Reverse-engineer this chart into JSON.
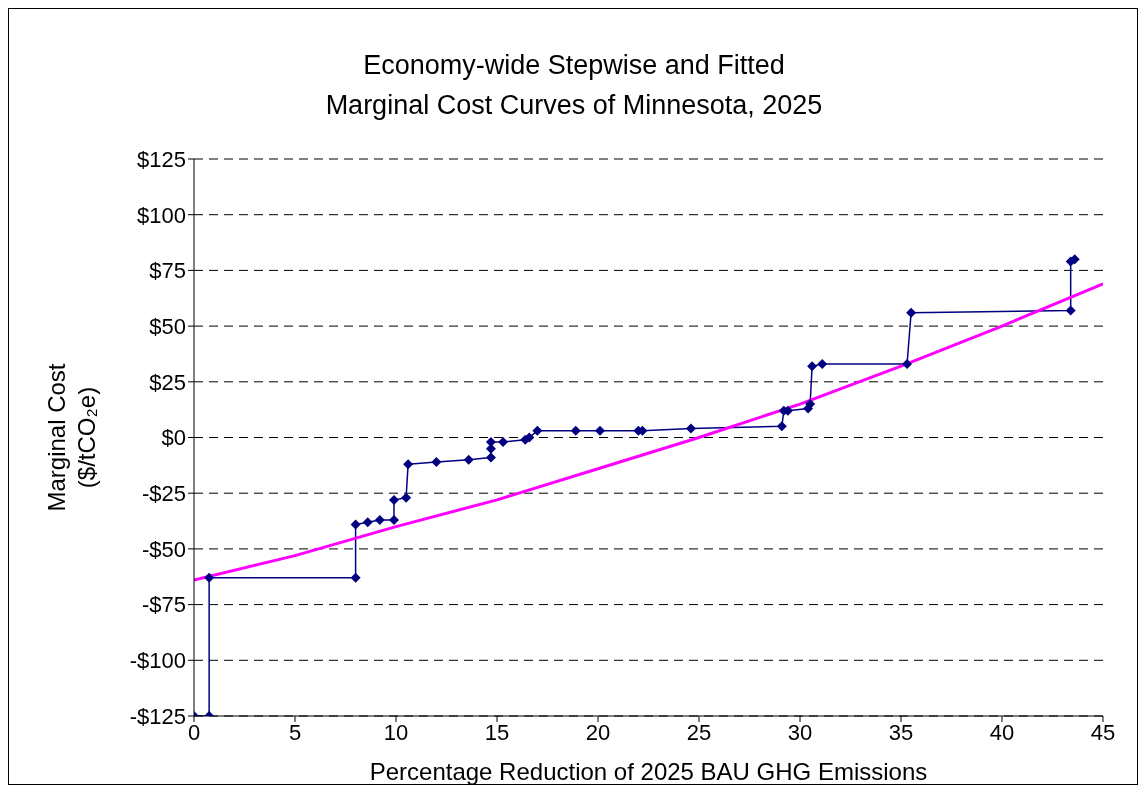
{
  "chart_data": {
    "type": "line",
    "title": "Economy-wide Stepwise and Fitted\nMarginal Cost Curves of Minnesota, 2025",
    "xlabel": "Percentage Reduction of 2025 BAU GHG Emissions",
    "ylabel": "Marginal Cost\n($/tCO₂e)",
    "xlim": [
      0,
      45
    ],
    "xticks": [
      0,
      5,
      10,
      15,
      20,
      25,
      30,
      35,
      40,
      45
    ],
    "ylim": [
      -125,
      125
    ],
    "yticks": [
      {
        "value": -125,
        "label": "-$125"
      },
      {
        "value": -100,
        "label": "-$100"
      },
      {
        "value": -75,
        "label": "-$75"
      },
      {
        "value": -50,
        "label": "-$50"
      },
      {
        "value": -25,
        "label": "-$25"
      },
      {
        "value": 0,
        "label": "$0"
      },
      {
        "value": 25,
        "label": "$25"
      },
      {
        "value": 50,
        "label": "$50"
      },
      {
        "value": 75,
        "label": "$75"
      },
      {
        "value": 100,
        "label": "$100"
      },
      {
        "value": 125,
        "label": "$125"
      }
    ],
    "grid": "y",
    "legend": false,
    "line_style": "solid",
    "series": [
      {
        "color": "#000080",
        "marker": "diamond",
        "x": [
          0,
          0.75,
          0.75,
          8.0,
          8.0,
          8.6,
          9.2,
          9.9,
          9.9,
          10.5,
          10.6,
          12.0,
          13.6,
          14.7,
          14.7,
          14.7,
          15.3,
          16.4,
          16.6,
          17.0,
          18.9,
          20.1,
          22.0,
          22.2,
          24.6,
          29.1,
          29.2,
          29.4,
          30.4,
          30.5,
          30.6,
          31.1,
          35.3,
          35.5,
          43.4,
          43.4,
          43.6
        ],
        "values": [
          -125,
          -125,
          -63,
          -63,
          -39,
          -38,
          -37,
          -37,
          -28,
          -27,
          -12,
          -11,
          -10,
          -9,
          -5,
          -2,
          -2,
          -1,
          0,
          3,
          3,
          3,
          3,
          3,
          4,
          5,
          12,
          12,
          13,
          15,
          32,
          33,
          33,
          56,
          57,
          79,
          80
        ]
      },
      {
        "color": "#ff00ff",
        "marker": "none",
        "x": [
          0,
          5,
          10,
          15,
          20,
          25,
          30,
          35,
          40,
          45
        ],
        "values": [
          -64,
          -53,
          -40,
          -28,
          -14,
          0,
          15,
          32,
          50,
          69
        ]
      }
    ]
  }
}
